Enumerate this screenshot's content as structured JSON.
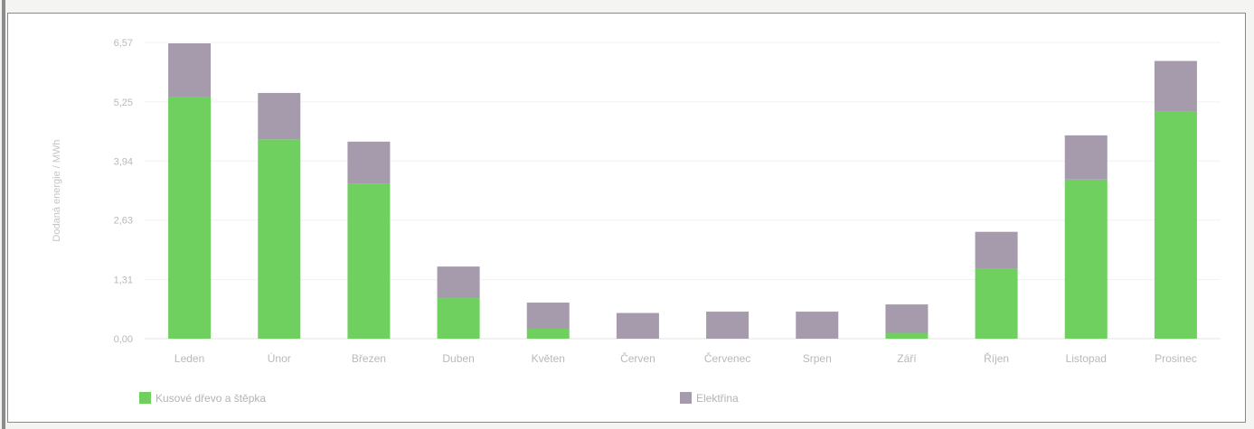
{
  "chart_data": {
    "type": "bar",
    "stacked": true,
    "title": "",
    "xlabel": "",
    "ylabel": "Dodaná energie / MWh",
    "ylim": [
      0,
      6.57
    ],
    "yticks": [
      "0,00",
      "1,31",
      "2,63",
      "3,94",
      "5,25",
      "6,57"
    ],
    "ytick_values": [
      0,
      1.31,
      2.63,
      3.94,
      5.25,
      6.57
    ],
    "grid": true,
    "legend_position": "bottom",
    "categories": [
      "Leden",
      "Únor",
      "Březen",
      "Duben",
      "Květen",
      "Červen",
      "Červenec",
      "Srpen",
      "Září",
      "Říjen",
      "Listopad",
      "Prosinec"
    ],
    "series": [
      {
        "name": "Kusové dřevo a štěpka",
        "color": "#6fcf5f",
        "values": [
          5.35,
          4.42,
          3.43,
          0.9,
          0.22,
          0.0,
          0.0,
          0.0,
          0.13,
          1.55,
          3.53,
          5.03
        ]
      },
      {
        "name": "Elektřina",
        "color": "#a59bad",
        "values": [
          1.2,
          1.03,
          0.94,
          0.7,
          0.58,
          0.57,
          0.6,
          0.6,
          0.63,
          0.82,
          0.98,
          1.13
        ]
      }
    ]
  }
}
